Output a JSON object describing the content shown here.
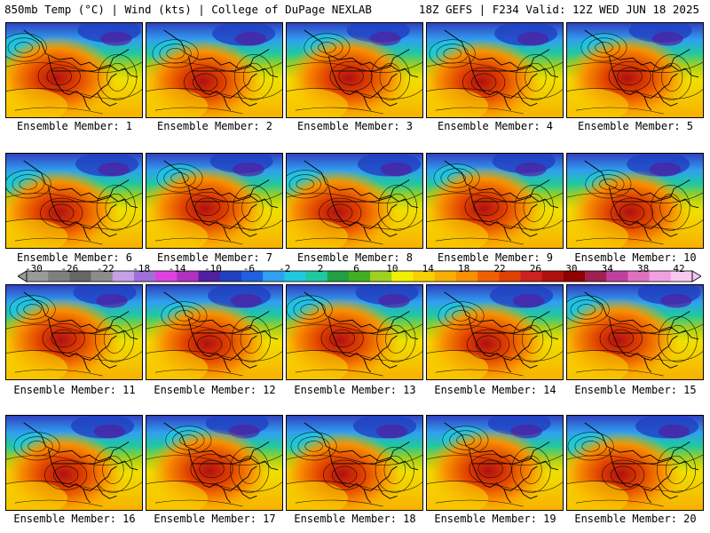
{
  "header": {
    "left": "850mb Temp (°C) | Wind (kts) | College of DuPage NEXLAB",
    "right": "18Z GEFS | F234 Valid: 12Z WED JUN 18 2025"
  },
  "panels": [
    {
      "label": "Ensemble Member: 1"
    },
    {
      "label": "Ensemble Member: 2"
    },
    {
      "label": "Ensemble Member: 3"
    },
    {
      "label": "Ensemble Member: 4"
    },
    {
      "label": "Ensemble Member: 5"
    },
    {
      "label": "Ensemble Member: 6"
    },
    {
      "label": "Ensemble Member: 7"
    },
    {
      "label": "Ensemble Member: 8"
    },
    {
      "label": "Ensemble Member: 9"
    },
    {
      "label": "Ensemble Member: 10"
    },
    {
      "label": "Ensemble Member: 11"
    },
    {
      "label": "Ensemble Member: 12"
    },
    {
      "label": "Ensemble Member: 13"
    },
    {
      "label": "Ensemble Member: 14"
    },
    {
      "label": "Ensemble Member: 15"
    },
    {
      "label": "Ensemble Member: 16"
    },
    {
      "label": "Ensemble Member: 17"
    },
    {
      "label": "Ensemble Member: 18"
    },
    {
      "label": "Ensemble Member: 19"
    },
    {
      "label": "Ensemble Member: 20"
    }
  ],
  "colorbar": {
    "tick_labels": [
      "-30",
      "-26",
      "-22",
      "-18",
      "-14",
      "-10",
      "-6",
      "-2",
      "2",
      "6",
      "10",
      "14",
      "18",
      "22",
      "26",
      "30",
      "34",
      "38",
      "42"
    ],
    "colors": [
      "#9a9a9a",
      "#7f7f7f",
      "#666666",
      "#8c8c8c",
      "#c8a0e6",
      "#a070d8",
      "#e040e0",
      "#b030c0",
      "#5020a0",
      "#2040c0",
      "#2060e0",
      "#30a0f0",
      "#20c8e0",
      "#20c8a0",
      "#20a040",
      "#40b020",
      "#a0d020",
      "#f0f000",
      "#f8d000",
      "#f8b000",
      "#f89000",
      "#f06000",
      "#e04000",
      "#d02020",
      "#b01010",
      "#900000",
      "#a02050",
      "#c040a0",
      "#e070c0",
      "#f0a0e0",
      "#f8c8f0"
    ]
  }
}
